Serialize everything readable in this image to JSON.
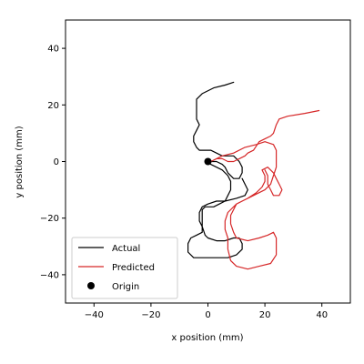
{
  "chart_data": {
    "type": "line",
    "title": "",
    "xlabel": "x position (mm)",
    "ylabel": "y position (mm)",
    "xlim": [
      -50,
      50
    ],
    "ylim": [
      -50,
      50
    ],
    "xticks": [
      -40,
      -20,
      0,
      20,
      40
    ],
    "yticks": [
      -40,
      -20,
      0,
      20,
      40
    ],
    "grid": false,
    "legend": "lower-left",
    "series": [
      {
        "name": "Actual",
        "color": "#000000",
        "points": [
          [
            9,
            28
          ],
          [
            6,
            27
          ],
          [
            2,
            26
          ],
          [
            -2,
            24
          ],
          [
            -4,
            22
          ],
          [
            -4,
            18
          ],
          [
            -4,
            15
          ],
          [
            -3,
            13
          ],
          [
            -4,
            11
          ],
          [
            -5,
            9
          ],
          [
            -5,
            7
          ],
          [
            -4,
            5
          ],
          [
            -3,
            4
          ],
          [
            -1,
            4
          ],
          [
            1,
            4
          ],
          [
            3,
            3
          ],
          [
            5,
            2
          ],
          [
            7,
            2
          ],
          [
            9,
            2
          ],
          [
            10,
            1
          ],
          [
            11,
            0
          ],
          [
            12,
            -2
          ],
          [
            12,
            -4
          ],
          [
            11,
            -6
          ],
          [
            9,
            -6
          ],
          [
            7,
            -4
          ],
          [
            6,
            -2
          ],
          [
            5,
            -1
          ],
          [
            3,
            0
          ],
          [
            1,
            0
          ],
          [
            0,
            0
          ],
          [
            1,
            -1
          ],
          [
            3,
            -2
          ],
          [
            5,
            -3
          ],
          [
            7,
            -5
          ],
          [
            8,
            -7
          ],
          [
            8,
            -10
          ],
          [
            7,
            -12
          ],
          [
            6,
            -14
          ],
          [
            4,
            -15
          ],
          [
            2,
            -16
          ],
          [
            -1,
            -16
          ],
          [
            -2,
            -17
          ],
          [
            -2,
            -20
          ],
          [
            -2,
            -23
          ],
          [
            -1,
            -26
          ],
          [
            0,
            -27
          ],
          [
            3,
            -28
          ],
          [
            6,
            -28
          ],
          [
            9,
            -27
          ],
          [
            11,
            -27
          ],
          [
            12,
            -29
          ],
          [
            12,
            -31
          ],
          [
            10,
            -33
          ],
          [
            7,
            -34
          ],
          [
            3,
            -34
          ],
          [
            -1,
            -34
          ],
          [
            -5,
            -34
          ],
          [
            -7,
            -32
          ],
          [
            -7,
            -29
          ],
          [
            -6,
            -27
          ],
          [
            -4,
            -26
          ],
          [
            -2,
            -25
          ],
          [
            -2,
            -23
          ],
          [
            -3,
            -21
          ],
          [
            -3,
            -18
          ],
          [
            -2,
            -16
          ],
          [
            0,
            -15
          ],
          [
            3,
            -14
          ],
          [
            6,
            -14
          ],
          [
            10,
            -13
          ],
          [
            13,
            -12
          ],
          [
            14,
            -10
          ],
          [
            13,
            -8
          ],
          [
            12,
            -6
          ]
        ]
      },
      {
        "name": "Predicted",
        "color": "#d62728",
        "points": [
          [
            39,
            18
          ],
          [
            34,
            17
          ],
          [
            28,
            16
          ],
          [
            25,
            15
          ],
          [
            24,
            13
          ],
          [
            23,
            10
          ],
          [
            22,
            9
          ],
          [
            20,
            8
          ],
          [
            18,
            7
          ],
          [
            16,
            4
          ],
          [
            14,
            3
          ],
          [
            13,
            2
          ],
          [
            11,
            1
          ],
          [
            9,
            0
          ],
          [
            7,
            0
          ],
          [
            5,
            1
          ],
          [
            3,
            1
          ],
          [
            1,
            0
          ],
          [
            5,
            2
          ],
          [
            9,
            3
          ],
          [
            13,
            5
          ],
          [
            17,
            6
          ],
          [
            20,
            7
          ],
          [
            23,
            6
          ],
          [
            24,
            4
          ],
          [
            24,
            1
          ],
          [
            24,
            -2
          ],
          [
            23,
            -5
          ],
          [
            22,
            -8
          ],
          [
            20,
            -10
          ],
          [
            18,
            -11
          ],
          [
            16,
            -12
          ],
          [
            14,
            -13
          ],
          [
            12,
            -14
          ],
          [
            10,
            -15
          ],
          [
            9,
            -17
          ],
          [
            8,
            -19
          ],
          [
            8,
            -22
          ],
          [
            9,
            -25
          ],
          [
            10,
            -27
          ],
          [
            14,
            -28
          ],
          [
            18,
            -27
          ],
          [
            21,
            -26
          ],
          [
            23,
            -25
          ],
          [
            24,
            -27
          ],
          [
            24,
            -30
          ],
          [
            24,
            -33
          ],
          [
            22,
            -36
          ],
          [
            18,
            -37
          ],
          [
            14,
            -38
          ],
          [
            10,
            -37
          ],
          [
            8,
            -35
          ],
          [
            7,
            -31
          ],
          [
            7,
            -27
          ],
          [
            6,
            -24
          ],
          [
            6,
            -21
          ],
          [
            7,
            -18
          ],
          [
            10,
            -15
          ],
          [
            14,
            -13
          ],
          [
            17,
            -11
          ],
          [
            19,
            -9
          ],
          [
            20,
            -7
          ],
          [
            20,
            -5
          ],
          [
            19,
            -3
          ],
          [
            21,
            -2
          ],
          [
            23,
            -4
          ],
          [
            24,
            -6
          ],
          [
            25,
            -8
          ],
          [
            26,
            -10
          ],
          [
            25,
            -12
          ],
          [
            23,
            -12
          ],
          [
            22,
            -10
          ],
          [
            21,
            -8
          ],
          [
            21,
            -5
          ],
          [
            20,
            -3
          ]
        ]
      }
    ],
    "markers": [
      {
        "name": "Origin",
        "x": 0,
        "y": 0,
        "color": "#000000"
      }
    ]
  }
}
